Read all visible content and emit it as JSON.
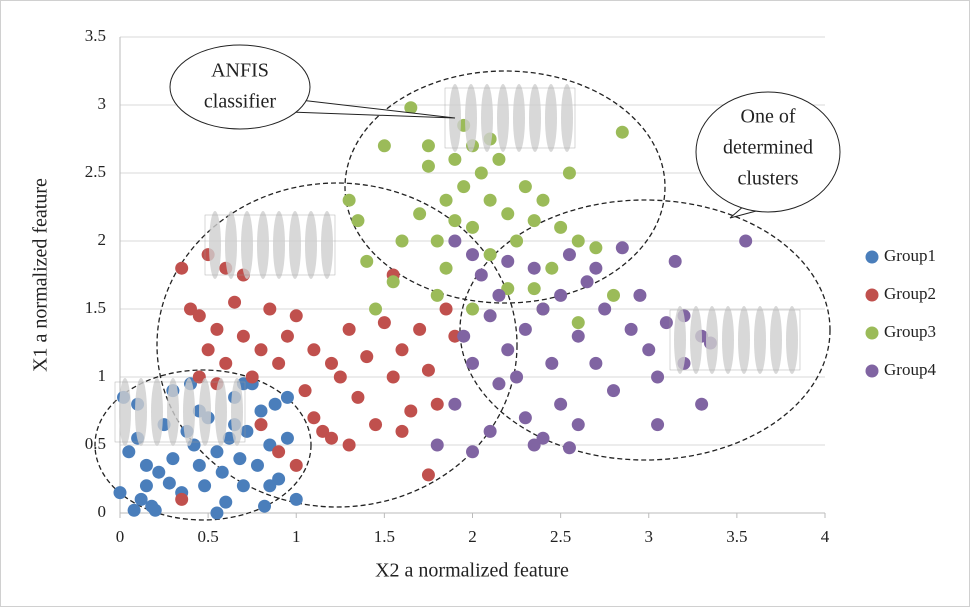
{
  "chart_data": {
    "type": "scatter",
    "x_label": "X2 a normalized feature",
    "y_label": "X1 a normalized feature",
    "xlim": [
      0,
      4
    ],
    "xticks": [
      0,
      0.5,
      1,
      1.5,
      2,
      2.5,
      3,
      3.5,
      4
    ],
    "ylim": [
      0,
      3.5
    ],
    "yticks": [
      0,
      0.5,
      1,
      1.5,
      2,
      2.5,
      3,
      3.5
    ],
    "grid": true,
    "legend": "right",
    "annotations": [
      [
        "ANFIS",
        "classifier"
      ],
      [
        "One of",
        "determined",
        "clusters"
      ]
    ],
    "series": [
      {
        "name": "Group1",
        "color": "#4a7ebb",
        "x": [
          0,
          0.08,
          0.12,
          0.18,
          0.2,
          0.05,
          0.1,
          0.15,
          0.22,
          0.28,
          0.3,
          0.35,
          0.38,
          0.42,
          0.45,
          0.48,
          0.5,
          0.55,
          0.58,
          0.6,
          0.62,
          0.65,
          0.68,
          0.7,
          0.72,
          0.75,
          0.78,
          0.8,
          0.82,
          0.85,
          0.88,
          0.9,
          0.95,
          1.0,
          0.02,
          0.1,
          0.25,
          0.3,
          0.4,
          0.55,
          0.65,
          0.85,
          0.15,
          0.45,
          0.7,
          0.95
        ],
        "values": [
          0.15,
          0.02,
          0.1,
          0.05,
          0.02,
          0.45,
          0.55,
          0.35,
          0.3,
          0.22,
          0.4,
          0.15,
          0.6,
          0.5,
          0.35,
          0.2,
          0.7,
          0.45,
          0.3,
          0.08,
          0.55,
          0.85,
          0.4,
          0.2,
          0.6,
          0.95,
          0.35,
          0.75,
          0.05,
          0.5,
          0.8,
          0.25,
          0.85,
          0.1,
          0.85,
          0.8,
          0.65,
          0.9,
          0.95,
          0.0,
          0.65,
          0.2,
          0.2,
          0.75,
          0.95,
          0.55
        ]
      },
      {
        "name": "Group2",
        "color": "#c0504d",
        "x": [
          0.35,
          0.5,
          0.6,
          0.4,
          0.45,
          0.5,
          0.55,
          0.6,
          0.65,
          0.7,
          0.75,
          0.8,
          0.85,
          0.9,
          0.95,
          1.0,
          1.05,
          1.1,
          1.15,
          1.2,
          1.25,
          1.3,
          1.35,
          1.4,
          1.45,
          1.5,
          1.55,
          1.6,
          1.65,
          1.7,
          1.75,
          1.8,
          1.85,
          1.9,
          0.35,
          1.0,
          1.2,
          1.75,
          0.55,
          0.8,
          0.9,
          1.1,
          1.3,
          1.55,
          0.45,
          0.7,
          1.6
        ],
        "values": [
          1.8,
          1.9,
          1.8,
          1.5,
          1.45,
          1.2,
          1.35,
          1.1,
          1.55,
          1.3,
          1.0,
          1.2,
          1.5,
          1.1,
          1.3,
          1.45,
          0.9,
          1.2,
          0.6,
          1.1,
          1.0,
          1.35,
          0.85,
          1.15,
          0.65,
          1.4,
          1.0,
          1.2,
          0.75,
          1.35,
          1.05,
          0.8,
          1.5,
          1.3,
          0.1,
          0.35,
          0.55,
          0.28,
          0.95,
          0.65,
          0.45,
          0.7,
          0.5,
          1.75,
          1.0,
          1.75,
          0.6
        ]
      },
      {
        "name": "Group3",
        "color": "#9bbb59",
        "x": [
          1.65,
          1.5,
          1.3,
          1.35,
          1.4,
          1.45,
          1.6,
          1.7,
          1.75,
          1.8,
          1.85,
          1.9,
          1.95,
          1.95,
          2.0,
          2.0,
          2.05,
          2.1,
          2.1,
          2.15,
          2.2,
          2.25,
          2.3,
          2.35,
          2.4,
          2.45,
          2.5,
          2.55,
          2.6,
          2.7,
          2.85,
          1.8,
          2.0,
          2.2,
          2.35,
          1.55,
          1.75,
          1.9,
          2.1,
          2.6,
          1.85,
          2.4,
          2.8
        ],
        "values": [
          2.98,
          2.7,
          2.3,
          2.15,
          1.85,
          1.5,
          2.0,
          2.2,
          2.55,
          2.0,
          2.3,
          2.6,
          2.85,
          2.4,
          2.1,
          2.7,
          2.5,
          2.3,
          1.9,
          2.6,
          2.2,
          2.0,
          2.4,
          2.15,
          2.3,
          1.8,
          2.1,
          2.5,
          2.0,
          1.95,
          2.8,
          1.6,
          1.5,
          1.65,
          1.65,
          1.7,
          2.7,
          2.15,
          2.75,
          1.4,
          1.8,
          1.5,
          1.6
        ]
      },
      {
        "name": "Group4",
        "color": "#8064a2",
        "x": [
          1.9,
          2.0,
          2.05,
          2.1,
          2.15,
          2.2,
          2.25,
          2.3,
          2.3,
          2.35,
          2.4,
          2.45,
          2.5,
          2.5,
          2.55,
          2.6,
          2.6,
          2.65,
          2.7,
          2.75,
          2.8,
          2.85,
          2.9,
          2.95,
          3.0,
          3.05,
          3.1,
          3.15,
          3.2,
          3.3,
          3.35,
          3.3,
          3.55,
          2.0,
          2.1,
          2.15,
          2.4,
          2.55,
          2.0,
          1.95,
          2.7,
          3.05,
          3.2,
          2.2,
          2.35,
          1.8,
          1.9
        ],
        "values": [
          2.0,
          1.9,
          1.75,
          1.45,
          1.6,
          1.2,
          1.0,
          1.35,
          0.7,
          0.5,
          1.5,
          1.1,
          1.6,
          0.8,
          1.9,
          1.3,
          0.65,
          1.7,
          1.1,
          1.5,
          0.9,
          1.95,
          1.35,
          1.6,
          1.2,
          1.0,
          1.4,
          1.85,
          1.1,
          1.3,
          1.25,
          0.8,
          2.0,
          0.45,
          0.6,
          0.95,
          0.55,
          0.48,
          1.1,
          1.3,
          1.8,
          0.65,
          1.45,
          1.85,
          1.8,
          0.5,
          0.8
        ]
      }
    ]
  }
}
